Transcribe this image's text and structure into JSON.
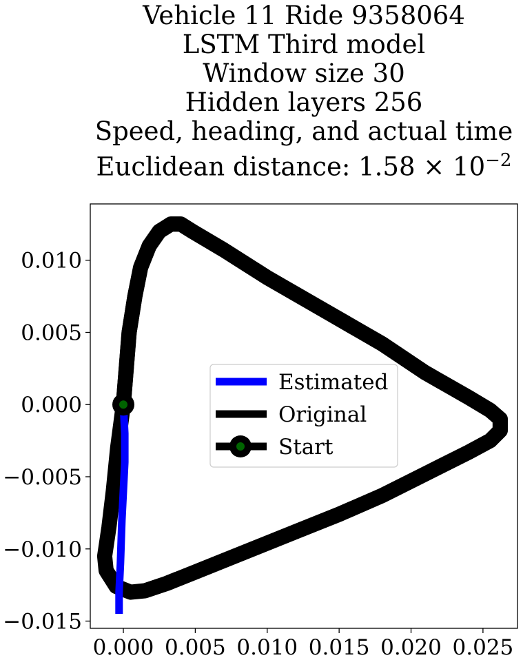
{
  "chart_data": {
    "type": "line",
    "title_lines": [
      "Vehicle 11 Ride 9358064",
      "LSTM Third model",
      "Window size 30",
      "Hidden layers 256",
      "Speed, heading, and actual time"
    ],
    "title_distance_prefix": "Euclidean distance: 1.58 × 10",
    "title_distance_exponent": "−2",
    "xlim": [
      -0.0023,
      0.0274
    ],
    "ylim": [
      -0.0155,
      0.0139
    ],
    "x_ticks": [
      0.0,
      0.005,
      0.01,
      0.015,
      0.02,
      0.025
    ],
    "x_tick_labels": [
      "0.000",
      "0.005",
      "0.010",
      "0.015",
      "0.020",
      "0.025"
    ],
    "y_ticks": [
      0.01,
      0.005,
      0.0,
      -0.005,
      -0.01,
      -0.015
    ],
    "y_tick_labels": [
      "0.010",
      "0.005",
      "0.000",
      "−0.005",
      "−0.010",
      "−0.015"
    ],
    "grid": false,
    "legend": {
      "placement": "center",
      "entries": [
        "Estimated",
        "Original",
        "Start"
      ]
    },
    "series": [
      {
        "name": "Estimated",
        "color": "#0000ff",
        "x": [
          -0.0003,
          -0.0003,
          -0.0002,
          -0.0001,
          0.0,
          0.0001,
          0.0001,
          0.0
        ],
        "y": [
          -0.0145,
          -0.013,
          -0.011,
          -0.008,
          -0.006,
          -0.004,
          -0.002,
          0.0
        ]
      },
      {
        "name": "Original",
        "color": "#000000",
        "x": [
          0.0,
          0.0002,
          0.0004,
          0.0008,
          0.0012,
          0.0018,
          0.0025,
          0.0033,
          0.004,
          0.0048,
          0.007,
          0.01,
          0.014,
          0.018,
          0.021,
          0.024,
          0.0255,
          0.0262,
          0.0262,
          0.0255,
          0.024,
          0.021,
          0.018,
          0.015,
          0.012,
          0.0095,
          0.0075,
          0.005,
          0.003,
          0.0015,
          0.0005,
          -0.0005,
          -0.0012,
          -0.0013,
          -0.001,
          -0.0007,
          -0.0004,
          0.0
        ],
        "y": [
          0.0,
          0.0025,
          0.005,
          0.0075,
          0.0095,
          0.011,
          0.012,
          0.0125,
          0.0125,
          0.012,
          0.0107,
          0.0088,
          0.0065,
          0.0042,
          0.0022,
          0.0005,
          -0.0004,
          -0.001,
          -0.0018,
          -0.0025,
          -0.0033,
          -0.0048,
          -0.0063,
          -0.0076,
          -0.0088,
          -0.0098,
          -0.0106,
          -0.0116,
          -0.0124,
          -0.0129,
          -0.013,
          -0.0126,
          -0.0115,
          -0.0105,
          -0.0085,
          -0.006,
          -0.003,
          0.0
        ]
      }
    ],
    "start_point": {
      "x": 0.0,
      "y": 0.0,
      "marker_color": "#006400",
      "edge_color": "#000000"
    }
  }
}
